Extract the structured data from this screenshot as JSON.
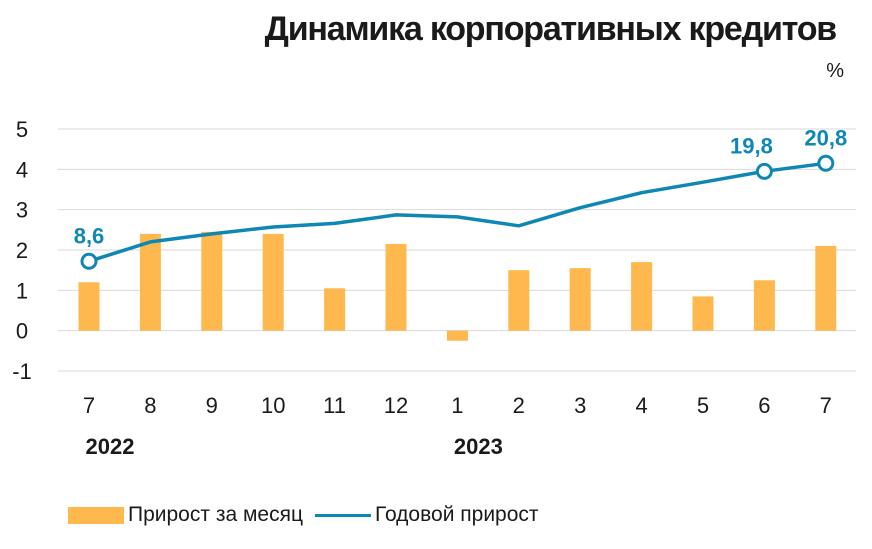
{
  "chart_data": {
    "type": "bar+line",
    "title": "Динамика корпоративных кредитов",
    "unit": "%",
    "categories": [
      "7",
      "8",
      "9",
      "10",
      "11",
      "12",
      "1",
      "2",
      "3",
      "4",
      "5",
      "6",
      "7"
    ],
    "year_labels": [
      {
        "label": "2022",
        "category_index": 0
      },
      {
        "label": "2023",
        "category_index": 6
      }
    ],
    "ylim": [
      -1,
      5
    ],
    "yticks": [
      "5",
      "4",
      "3",
      "2",
      "1",
      "0",
      "-1"
    ],
    "series": [
      {
        "name": "Прирост за месяц",
        "type": "bar",
        "color": "#ffb84d",
        "values": [
          1.2,
          2.4,
          2.45,
          2.4,
          1.05,
          2.15,
          -0.25,
          1.5,
          1.55,
          1.7,
          0.85,
          1.25,
          2.1
        ]
      },
      {
        "name": "Годовой прирост",
        "type": "line",
        "color": "#0f87b5",
        "values": [
          1.72,
          2.2,
          2.4,
          2.57,
          2.66,
          2.87,
          2.82,
          2.6,
          3.05,
          3.42,
          3.68,
          3.95,
          4.15
        ],
        "markers": [
          {
            "index": 0,
            "label": "8,6"
          },
          {
            "index": 11,
            "label": "19,8"
          },
          {
            "index": 12,
            "label": "20,8"
          }
        ]
      }
    ],
    "grid": true,
    "legend": "bottom-left"
  },
  "colors": {
    "bar": "#ffb84d",
    "line": "#0f87b5",
    "grid": "#d9d9d9",
    "text": "#1a1a1a"
  }
}
